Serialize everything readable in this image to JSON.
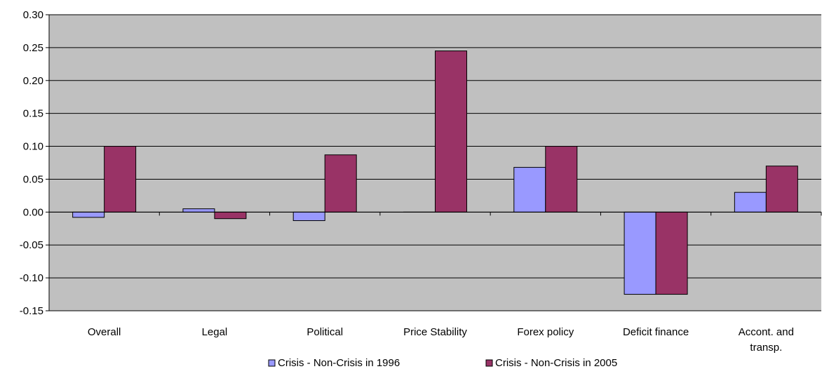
{
  "chart_data": {
    "type": "bar",
    "title": "",
    "xlabel": "",
    "ylabel": "",
    "categories": [
      "Overall",
      "Legal",
      "Political",
      "Price Stability",
      "Forex policy",
      "Deficit finance",
      "Accont. and transp."
    ],
    "category_lines": [
      [
        "Overall"
      ],
      [
        "Legal"
      ],
      [
        "Political"
      ],
      [
        "Price Stability"
      ],
      [
        "Forex policy"
      ],
      [
        "Deficit finance"
      ],
      [
        "Accont. and",
        "transp."
      ]
    ],
    "series": [
      {
        "name": "Crisis - Non-Crisis in 1996",
        "color": "#9999ff",
        "values": [
          -0.008,
          0.005,
          -0.013,
          0.0,
          0.068,
          -0.125,
          0.03
        ]
      },
      {
        "name": "Crisis - Non-Crisis in 2005",
        "color": "#993366",
        "values": [
          0.1,
          -0.01,
          0.087,
          0.245,
          0.1,
          -0.125,
          0.07
        ]
      }
    ],
    "ylim": [
      -0.15,
      0.3
    ],
    "yticks": [
      0.3,
      0.25,
      0.2,
      0.15,
      0.1,
      0.05,
      0.0,
      -0.05,
      -0.1,
      -0.15
    ],
    "ytick_labels": [
      "0.30",
      "0.25",
      "0.20",
      "0.15",
      "0.10",
      "0.05",
      "0.00",
      "-0.05",
      "-0.10",
      "-0.15"
    ],
    "grid": true,
    "plot_background": "#c0c0c0",
    "legend_position": "bottom"
  }
}
